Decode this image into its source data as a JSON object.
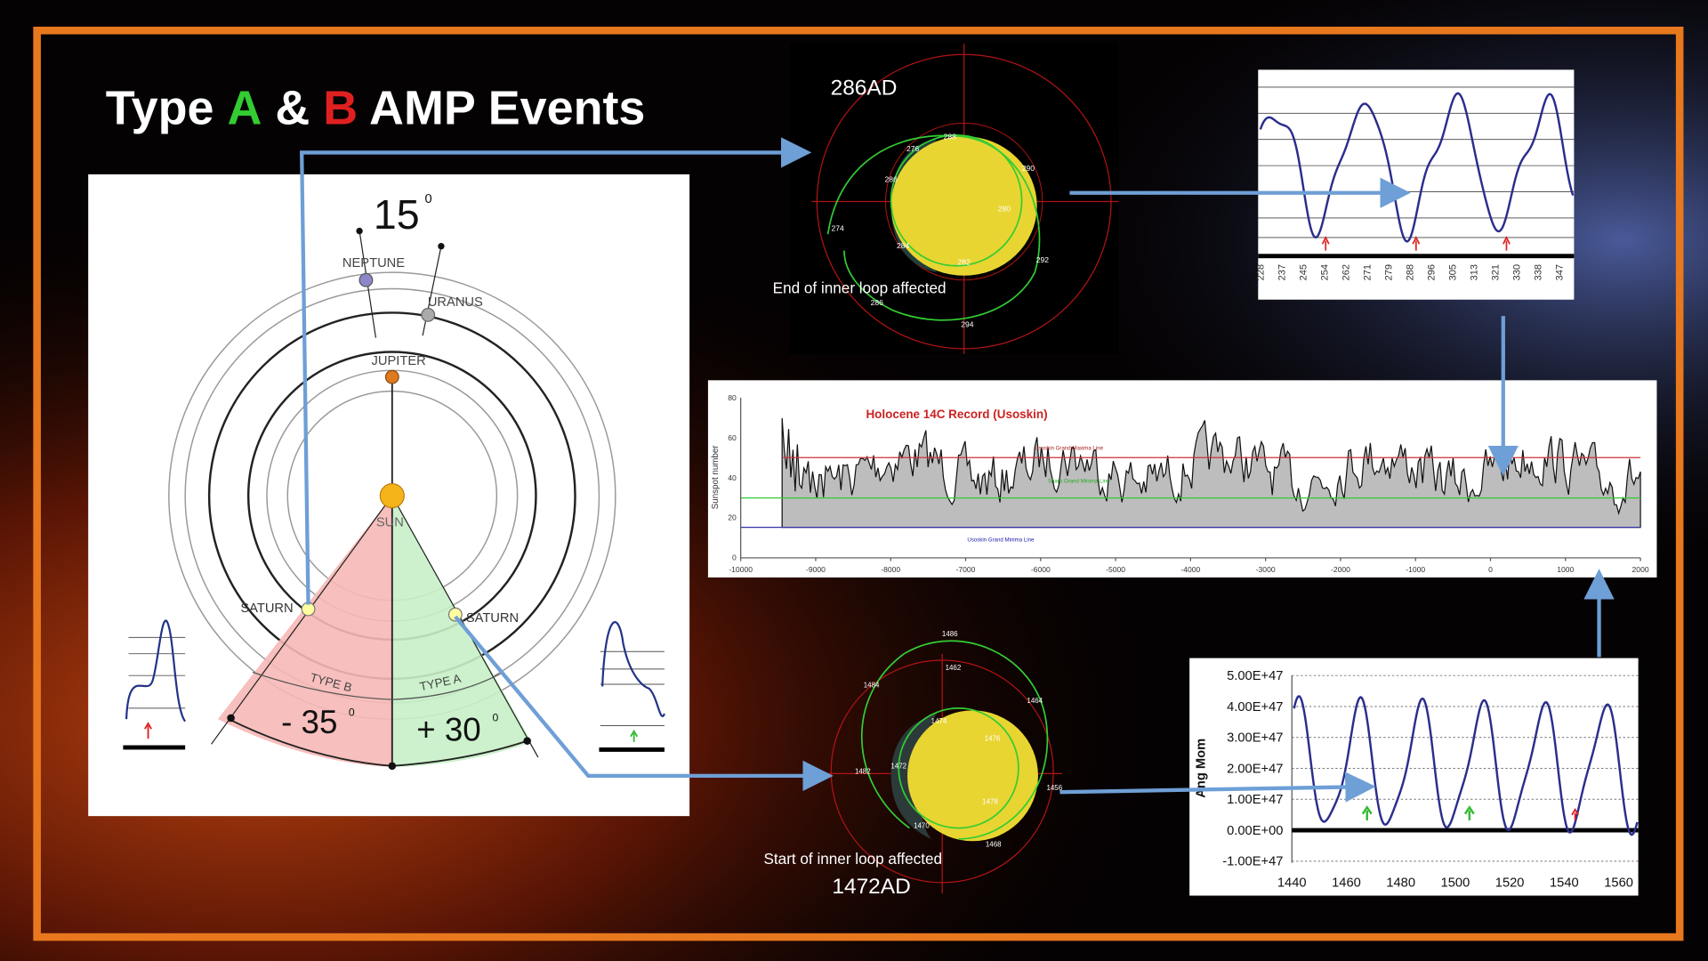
{
  "title": {
    "pre": "Type ",
    "a": "A",
    "mid": " & ",
    "b": "B",
    "post": " AMP Events"
  },
  "diagram": {
    "top_angle": "15",
    "degree": "0",
    "neptune": "NEPTUNE",
    "uranus": "URANUS",
    "jupiter": "JUPITER",
    "sun": "SUN",
    "saturn_left": "SATURN",
    "saturn_right": "SATURN",
    "type_b": "TYPE B",
    "type_a": "TYPE A",
    "minus": "- 35",
    "plus": "+ 30"
  },
  "orbit_top": {
    "year": "286AD",
    "caption": "End of inner loop affected",
    "labels": [
      "288",
      "276",
      "286",
      "280",
      "274",
      "284",
      "282",
      "292",
      "290",
      "294",
      "286"
    ]
  },
  "wave_top": {
    "xticks": [
      "228",
      "237",
      "245",
      "254",
      "262",
      "271",
      "279",
      "288",
      "296",
      "305",
      "313",
      "321",
      "330",
      "338",
      "347"
    ]
  },
  "holocene": {
    "title": "Holocene 14C Record (Usoskin)",
    "ylabel": "Sunspot number",
    "yticks": [
      "0",
      "20",
      "40",
      "60",
      "80"
    ],
    "xticks": [
      "-10000",
      "-9000",
      "-8000",
      "-7000",
      "-6000",
      "-5000",
      "-4000",
      "-3000",
      "-2000",
      "-1000",
      "0",
      "1000",
      "2000"
    ],
    "max_line": "Usoskin Grand Maxima Line",
    "sharp_line": "Sharp Grand Minima Line",
    "min_line": "Usoskin Grand Minima Line"
  },
  "orbit_bottom": {
    "year": "1472AD",
    "caption": "Start of inner loop affected",
    "labels": [
      "1486",
      "1462",
      "1484",
      "1464",
      "1474",
      "1476",
      "1482",
      "1472",
      "1456",
      "1478",
      "1470",
      "1468"
    ]
  },
  "angmom": {
    "ylabel": "Ang Mom",
    "yticks": [
      "5.00E+47",
      "4.00E+47",
      "3.00E+47",
      "2.00E+47",
      "1.00E+47",
      "0.00E+00",
      "-1.00E+47"
    ],
    "xticks": [
      "1440",
      "1460",
      "1480",
      "1500",
      "1520",
      "1540",
      "1560"
    ]
  }
}
